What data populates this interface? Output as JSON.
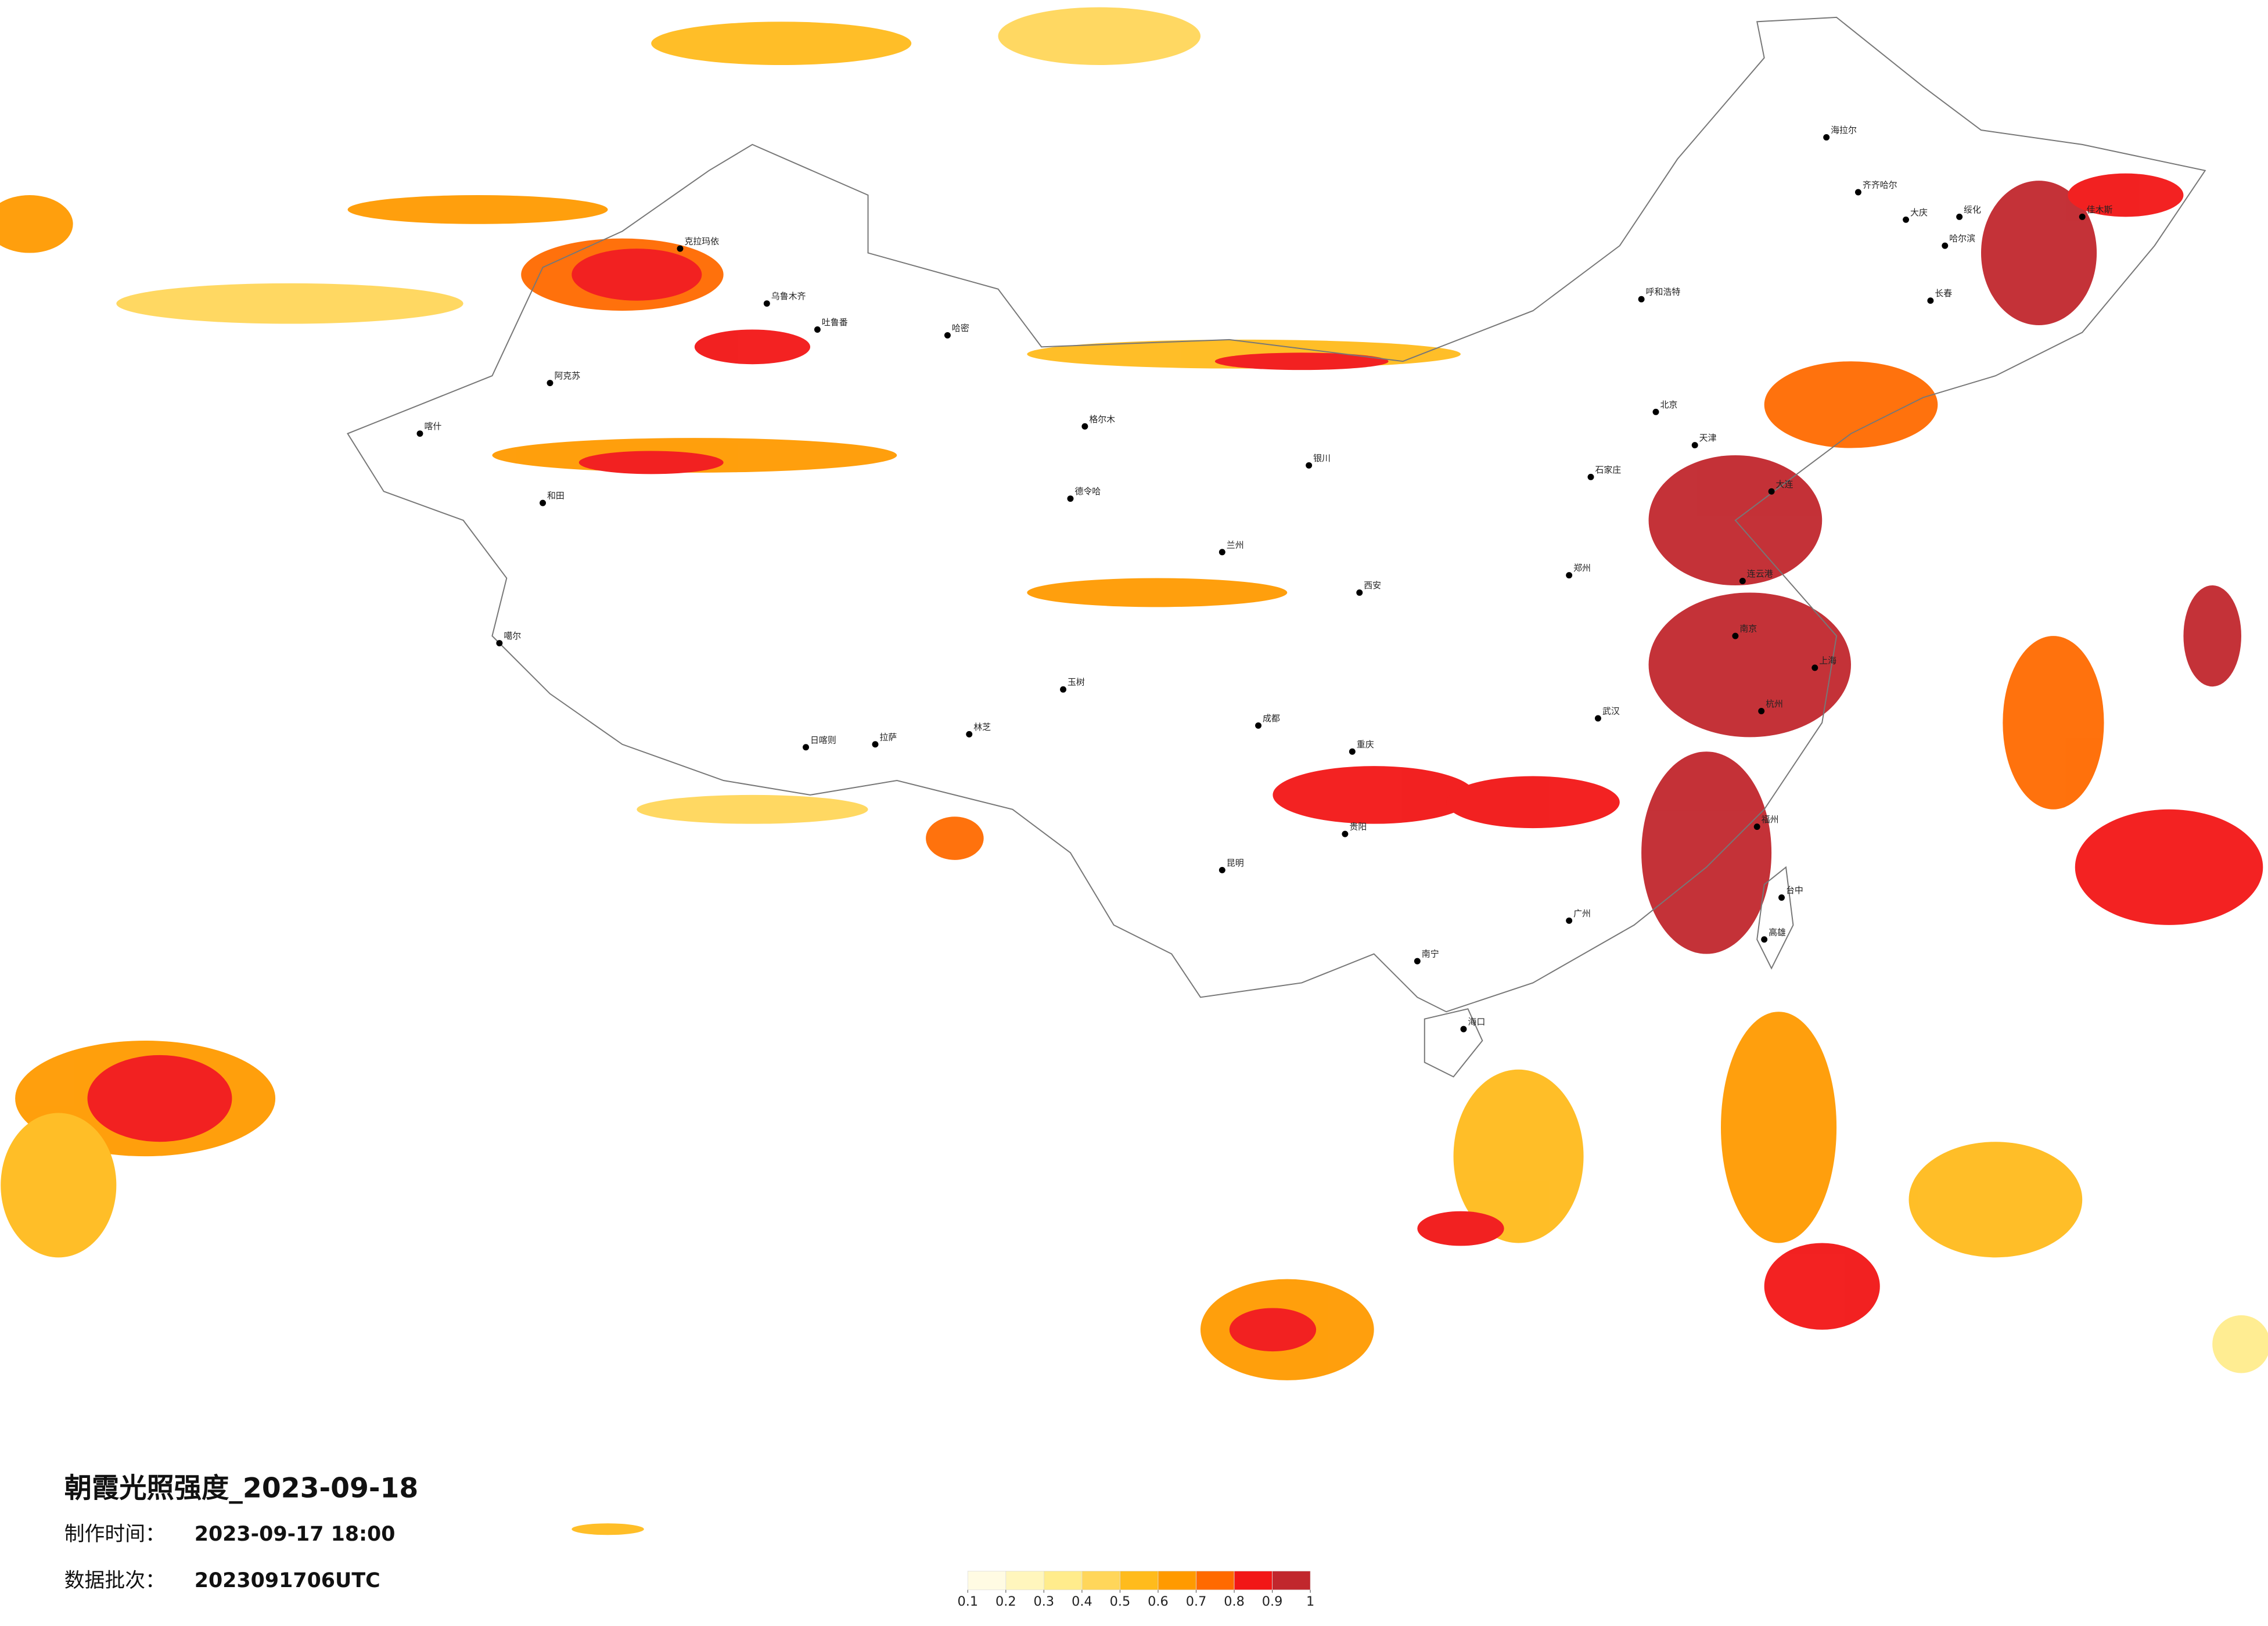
{
  "header": {
    "title": "朝霞光照强度_2023-09-18",
    "made_label": "制作时间：",
    "made_time": "2023-09-17 18:00",
    "batch_label": "数据批次：",
    "batch": "2023091706UTC"
  },
  "legend": {
    "ticks": [
      0.1,
      0.2,
      0.3,
      0.4,
      0.5,
      0.6,
      0.7,
      0.8,
      0.9,
      1
    ],
    "colors": [
      "#fffbe3",
      "#fff6bd",
      "#ffec8c",
      "#ffd65a",
      "#ffbb1c",
      "#ff9a00",
      "#ff6a00",
      "#f21616",
      "#c1272d"
    ]
  },
  "cities": [
    "克拉玛依",
    "乌鲁木齐",
    "吐鲁番",
    "哈密",
    "阿克苏",
    "喀什",
    "和田",
    "噶尔",
    "日喀则",
    "拉萨",
    "林芝",
    "玉树",
    "格尔木",
    "德令哈",
    "海拉尔",
    "齐齐哈尔",
    "大庆",
    "哈尔滨",
    "长春",
    "呼和浩特",
    "北京",
    "天津",
    "石家庄",
    "郑州",
    "西安",
    "兰州",
    "银川",
    "成都",
    "重庆",
    "武汉",
    "南京",
    "上海",
    "杭州",
    "福州",
    "广州",
    "南宁",
    "海口",
    "昆明",
    "贵阳",
    "台中",
    "高雄",
    "大连",
    "连云港",
    "绥化",
    "佳木斯"
  ]
}
